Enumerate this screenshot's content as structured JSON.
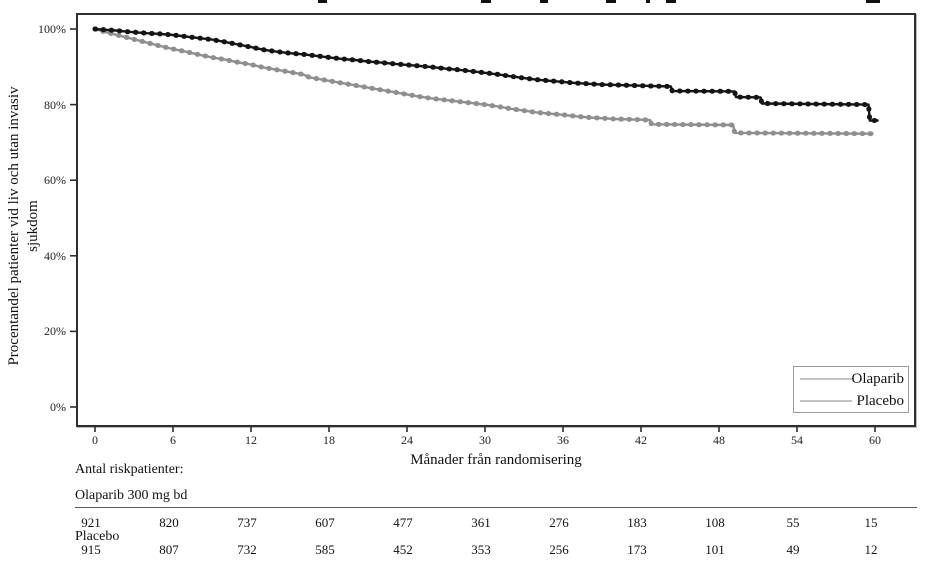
{
  "accent_colors": {
    "olaparib_curve": "#141414",
    "placebo_curve": "#8f8f8f",
    "legend_sample_line": "#c4c4c4",
    "axis_line": "#2e2e2e"
  },
  "artifacts": {
    "cropped_title_descenders": [
      {
        "x": 318,
        "w": 9
      },
      {
        "x": 481,
        "w": 10
      },
      {
        "x": 540,
        "w": 8
      },
      {
        "x": 606,
        "w": 10
      },
      {
        "x": 646,
        "w": 4
      },
      {
        "x": 666,
        "w": 10
      },
      {
        "x": 866,
        "w": 14
      }
    ]
  },
  "chart": {
    "y_axis": {
      "label_line1": "Procentandel patienter vid liv och utan invasiv",
      "label_line2": "sjukdom",
      "tick_labels": [
        "100%",
        "80%",
        "60%",
        "40%",
        "20%",
        "0%"
      ],
      "tick_percents": [
        100,
        80,
        60,
        40,
        20,
        0
      ]
    },
    "x_axis": {
      "label": "Månader från randomisering",
      "tick_labels": [
        "0",
        "6",
        "12",
        "18",
        "24",
        "30",
        "36",
        "42",
        "48",
        "54",
        "60"
      ],
      "tick_months": [
        0,
        6,
        12,
        18,
        24,
        30,
        36,
        42,
        48,
        54,
        60
      ]
    }
  },
  "chart_data": {
    "type": "line",
    "subtype": "kaplan-meier-survival",
    "title": "",
    "xlabel": "Månader från randomisering",
    "ylabel": "Procentandel patienter vid liv och utan invasiv sjukdom",
    "xlim": [
      0,
      63
    ],
    "ylim": [
      0,
      100
    ],
    "x_ticks": [
      0,
      6,
      12,
      18,
      24,
      30,
      36,
      42,
      48,
      54,
      60
    ],
    "y_ticks_percent": [
      0,
      20,
      40,
      60,
      80,
      100
    ],
    "grid": false,
    "legend_position": "lower right",
    "series": [
      {
        "name": "Olaparib",
        "color": "#141414",
        "points_month_percent": [
          [
            0,
            100
          ],
          [
            0.8,
            99.8
          ],
          [
            1.6,
            99.6
          ],
          [
            2.4,
            99.3
          ],
          [
            3.2,
            99.1
          ],
          [
            4,
            98.9
          ],
          [
            5,
            98.7
          ],
          [
            6,
            98.4
          ],
          [
            7,
            98.0
          ],
          [
            8,
            97.6
          ],
          [
            9,
            97.2
          ],
          [
            10,
            96.6
          ],
          [
            11,
            95.9
          ],
          [
            12,
            95.2
          ],
          [
            13,
            94.5
          ],
          [
            14,
            94.0
          ],
          [
            15,
            93.6
          ],
          [
            16,
            93.3
          ],
          [
            17,
            92.9
          ],
          [
            18,
            92.5
          ],
          [
            19,
            92.1
          ],
          [
            20,
            91.8
          ],
          [
            21,
            91.4
          ],
          [
            22,
            91.1
          ],
          [
            23,
            90.8
          ],
          [
            24,
            90.5
          ],
          [
            25,
            90.2
          ],
          [
            26,
            89.9
          ],
          [
            27,
            89.5
          ],
          [
            28,
            89.2
          ],
          [
            29,
            88.8
          ],
          [
            30,
            88.4
          ],
          [
            31,
            88.0
          ],
          [
            32,
            87.5
          ],
          [
            33,
            87.0
          ],
          [
            34,
            86.6
          ],
          [
            35,
            86.3
          ],
          [
            36,
            86.0
          ],
          [
            37,
            85.7
          ],
          [
            38,
            85.5
          ],
          [
            39,
            85.3
          ],
          [
            40,
            85.2
          ],
          [
            41,
            85.1
          ],
          [
            42,
            85.0
          ],
          [
            43,
            84.9
          ],
          [
            44.3,
            84.8
          ],
          [
            44.4,
            83.6
          ],
          [
            49.2,
            83.5
          ],
          [
            49.3,
            82.0
          ],
          [
            51.2,
            81.9
          ],
          [
            51.3,
            80.3
          ],
          [
            59.5,
            80.0
          ],
          [
            59.6,
            75.8
          ],
          [
            60.2,
            75.8
          ]
        ]
      },
      {
        "name": "Placebo",
        "color": "#8f8f8f",
        "points_month_percent": [
          [
            0,
            100
          ],
          [
            0.8,
            99.2
          ],
          [
            1.6,
            98.5
          ],
          [
            2.4,
            97.8
          ],
          [
            3.2,
            97.1
          ],
          [
            4,
            96.4
          ],
          [
            5,
            95.5
          ],
          [
            6,
            94.7
          ],
          [
            7,
            94.0
          ],
          [
            8,
            93.2
          ],
          [
            9,
            92.5
          ],
          [
            10,
            91.9
          ],
          [
            11,
            91.2
          ],
          [
            12,
            90.6
          ],
          [
            13,
            89.8
          ],
          [
            14,
            89.2
          ],
          [
            15,
            88.6
          ],
          [
            16,
            88.0
          ],
          [
            16.5,
            87.2
          ],
          [
            17,
            86.9
          ],
          [
            18,
            86.3
          ],
          [
            19,
            85.7
          ],
          [
            20,
            85.1
          ],
          [
            21,
            84.5
          ],
          [
            22,
            83.9
          ],
          [
            23,
            83.3
          ],
          [
            24,
            82.7
          ],
          [
            25,
            82.1
          ],
          [
            26,
            81.6
          ],
          [
            27,
            81.2
          ],
          [
            28,
            80.8
          ],
          [
            29,
            80.4
          ],
          [
            30,
            80.0
          ],
          [
            31,
            79.5
          ],
          [
            32,
            78.9
          ],
          [
            33,
            78.4
          ],
          [
            34,
            77.9
          ],
          [
            35,
            77.6
          ],
          [
            36,
            77.3
          ],
          [
            37,
            76.9
          ],
          [
            38,
            76.6
          ],
          [
            39,
            76.4
          ],
          [
            40,
            76.2
          ],
          [
            41,
            76.1
          ],
          [
            42,
            76.0
          ],
          [
            42.7,
            75.9
          ],
          [
            42.8,
            74.8
          ],
          [
            49.1,
            74.6
          ],
          [
            49.2,
            72.5
          ],
          [
            55,
            72.4
          ],
          [
            59.8,
            72.3
          ]
        ]
      }
    ]
  },
  "legend": {
    "items": [
      {
        "label": "Olaparib"
      },
      {
        "label": "Placebo"
      }
    ]
  },
  "risk_table": {
    "title": "Antal riskpatienter:",
    "groups": [
      {
        "label": "Olaparib 300 mg bd",
        "counts": [
          "921",
          "820",
          "737",
          "607",
          "477",
          "361",
          "276",
          "183",
          "108",
          "55",
          "15"
        ]
      },
      {
        "label": "Placebo",
        "counts": [
          "915",
          "807",
          "732",
          "585",
          "452",
          "353",
          "256",
          "173",
          "101",
          "49",
          "12"
        ]
      }
    ]
  }
}
